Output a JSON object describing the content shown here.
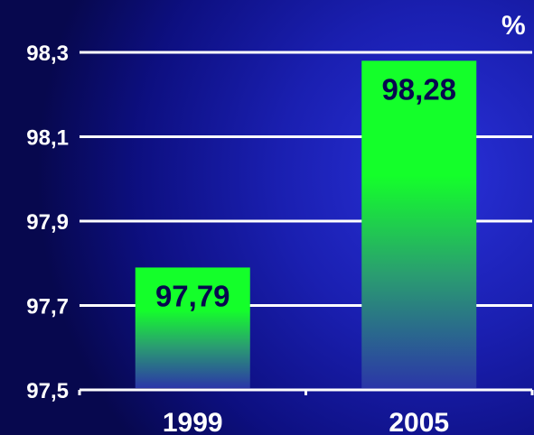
{
  "chart_data": {
    "type": "bar",
    "unit": "%",
    "categories": [
      "1999",
      "2005"
    ],
    "values": [
      97.79,
      98.28
    ],
    "value_labels": [
      "97,79",
      "98,28"
    ],
    "ylim": [
      97.5,
      98.3
    ],
    "yticks": [
      97.5,
      97.7,
      97.9,
      98.1,
      98.3
    ],
    "ytick_labels": [
      "97,5",
      "97,7",
      "97,9",
      "98,1",
      "98,3"
    ],
    "grid": true,
    "colors": {
      "bar_top": "#14ff2a",
      "bar_mid": "#2a9e70",
      "bar_bottom": "#2b36a8",
      "grid": "#ffffff",
      "label_text": "#ffffff",
      "value_text": "#07084e"
    }
  }
}
